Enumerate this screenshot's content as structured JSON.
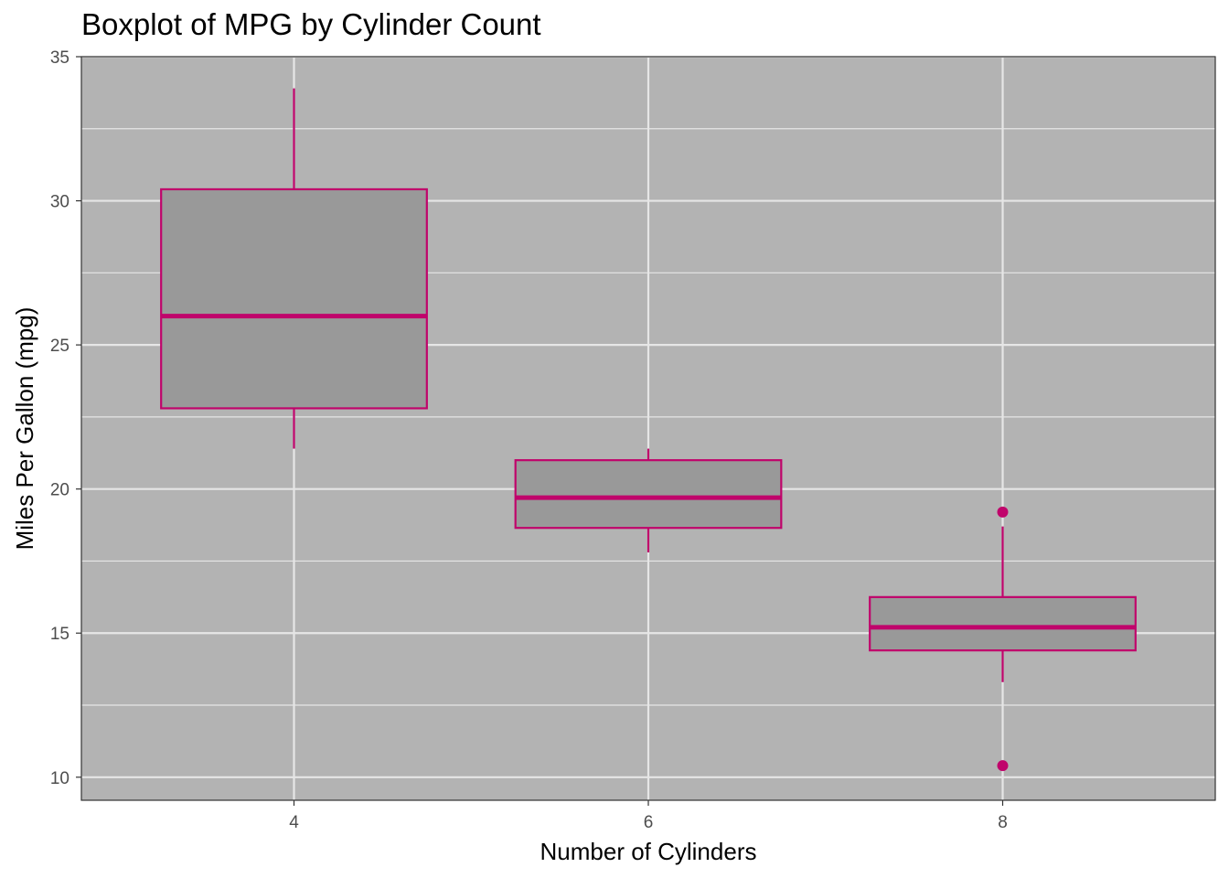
{
  "chart_data": {
    "type": "boxplot",
    "title": "Boxplot of MPG by Cylinder Count",
    "xlabel": "Number of Cylinders",
    "ylabel": "Miles Per Gallon (mpg)",
    "categories": [
      "4",
      "6",
      "8"
    ],
    "x_values": [
      4,
      6,
      8
    ],
    "xlim": [
      2.8,
      9.2
    ],
    "ylim": [
      9.2,
      35.0
    ],
    "y_ticks": [
      10,
      15,
      20,
      25,
      30,
      35
    ],
    "y_tick_labels": [
      "10",
      "15",
      "20",
      "25",
      "30",
      "35"
    ],
    "grid": true,
    "boxes": [
      {
        "category": "4",
        "lower_whisker": 21.4,
        "q1": 22.8,
        "median": 26.0,
        "q3": 30.4,
        "upper_whisker": 33.9,
        "outliers": []
      },
      {
        "category": "6",
        "lower_whisker": 17.8,
        "q1": 18.65,
        "median": 19.7,
        "q3": 21.0,
        "upper_whisker": 21.4,
        "outliers": []
      },
      {
        "category": "8",
        "lower_whisker": 13.3,
        "q1": 14.4,
        "median": 15.2,
        "q3": 16.25,
        "upper_whisker": 18.7,
        "outliers": [
          19.2,
          10.4
        ]
      }
    ],
    "colors": {
      "panel": "#b3b3b3",
      "box_fill": "#999999",
      "box_line": "#c0046b",
      "grid": "#e6e6e6"
    }
  }
}
